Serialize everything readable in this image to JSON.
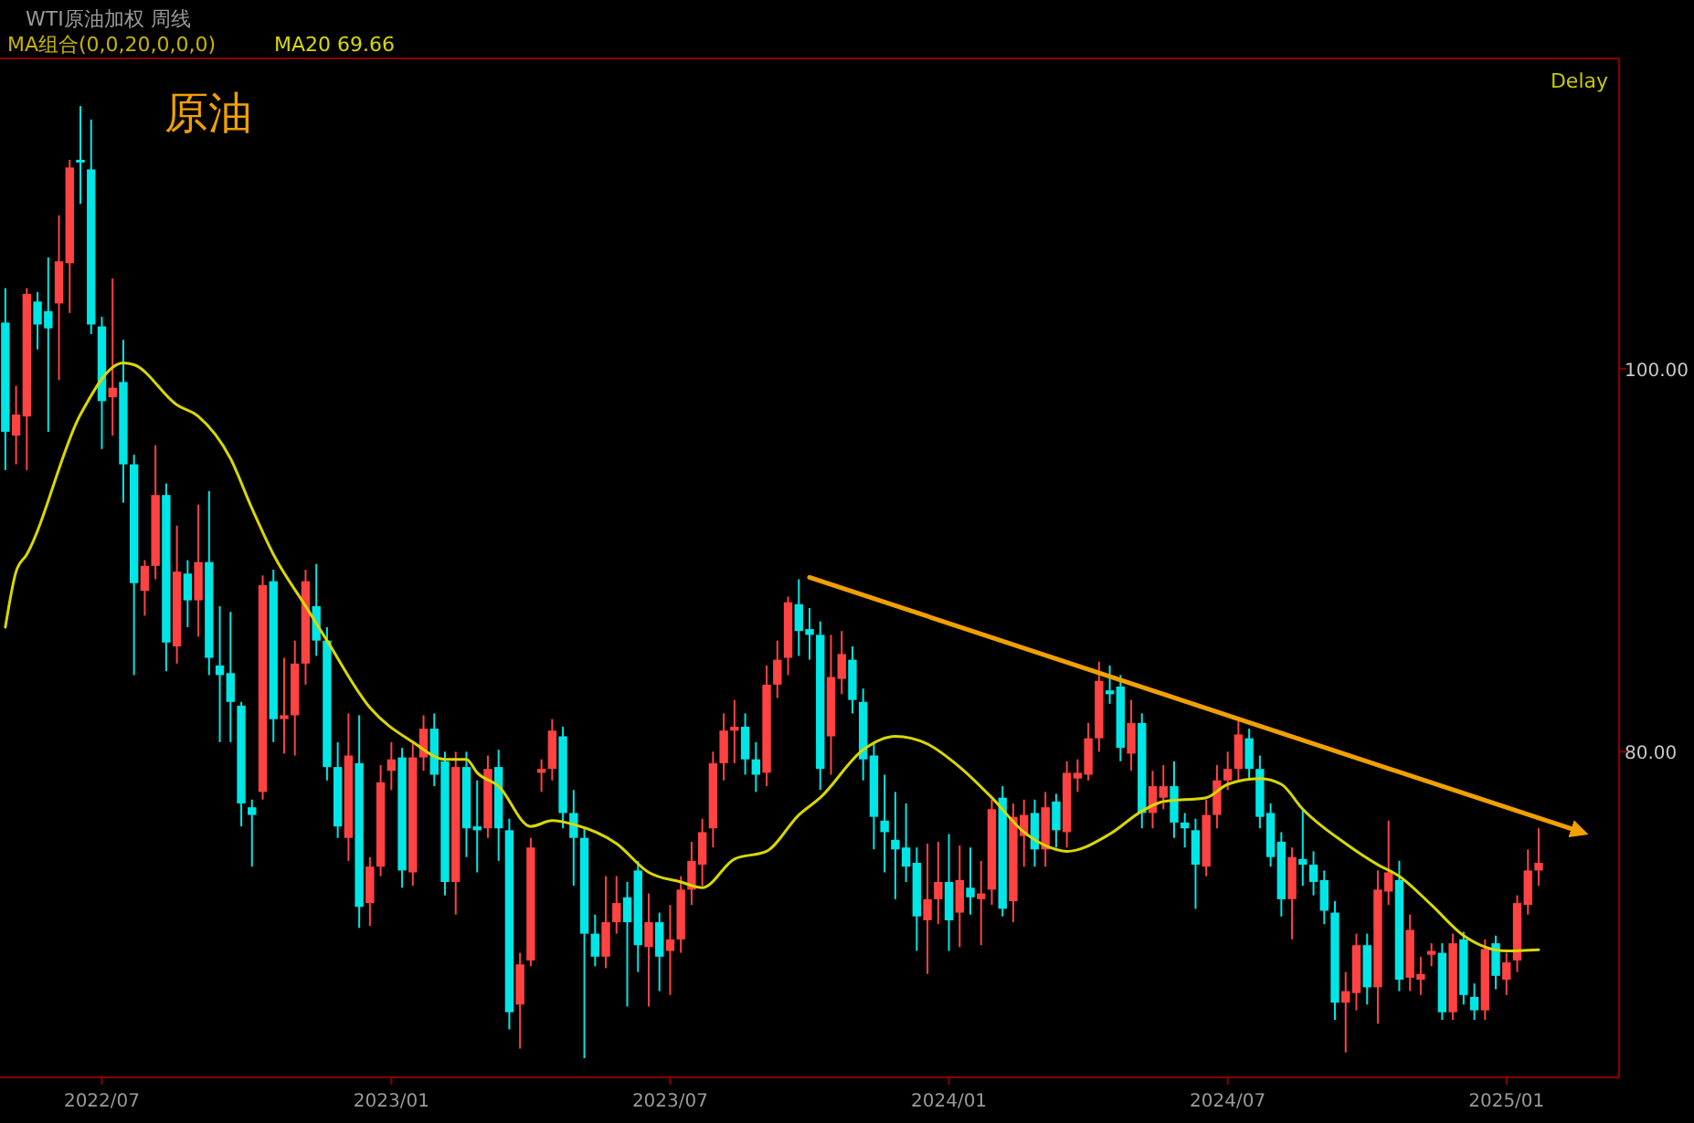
{
  "chart_data": {
    "type": "candlestick",
    "title": "WTI原油加权 周线",
    "subtitle": "MA组合(0,0,20,0,0,0)",
    "categories": [
      null,
      null,
      null,
      null,
      null,
      null,
      null,
      null,
      null,
      "2022/07",
      null,
      null,
      null,
      null,
      null,
      null,
      null,
      null,
      null,
      null,
      null,
      null,
      null,
      null,
      null,
      null,
      null,
      null,
      null,
      null,
      null,
      null,
      null,
      null,
      null,
      null,
      "2023/01",
      null,
      null,
      null,
      null,
      null,
      null,
      null,
      null,
      null,
      null,
      null,
      null,
      null,
      null,
      null,
      null,
      null,
      null,
      null,
      null,
      null,
      null,
      null,
      null,
      null,
      "2023/07",
      null,
      null,
      null,
      null,
      null,
      null,
      null,
      null,
      null,
      null,
      null,
      null,
      null,
      null,
      null,
      null,
      null,
      null,
      null,
      null,
      null,
      null,
      null,
      null,
      null,
      "2024/01",
      null,
      null,
      null,
      null,
      null,
      null,
      null,
      null,
      null,
      null,
      null,
      null,
      null,
      null,
      null,
      null,
      null,
      null,
      null,
      null,
      null,
      null,
      null,
      null,
      null,
      "2024/07",
      null,
      null,
      null,
      null,
      null,
      null,
      null,
      null,
      null,
      null,
      null,
      null,
      null,
      null,
      null,
      null,
      null,
      null,
      null,
      null,
      null,
      null,
      null,
      null,
      null,
      "2025/01",
      null,
      null,
      null,
      null,
      null,
      null,
      null,
      null,
      null,
      null
    ],
    "ohlc": [
      [
        102.4,
        104.2,
        94.7,
        96.7
      ],
      [
        96.5,
        99.1,
        95.0,
        97.6
      ],
      [
        97.5,
        104.2,
        94.7,
        103.9
      ],
      [
        103.5,
        104.0,
        101.0,
        102.3
      ],
      [
        103.0,
        105.8,
        96.7,
        102.1
      ],
      [
        103.4,
        108.0,
        99.4,
        105.6
      ],
      [
        105.5,
        110.9,
        102.9,
        110.5
      ],
      [
        110.9,
        113.7,
        108.6,
        110.8
      ],
      [
        110.4,
        113.0,
        101.8,
        102.3
      ],
      [
        102.2,
        102.7,
        95.8,
        98.3
      ],
      [
        98.5,
        104.7,
        96.5,
        99.0
      ],
      [
        99.3,
        101.5,
        93.0,
        95.0
      ],
      [
        95.0,
        95.5,
        84.0,
        88.8
      ],
      [
        88.4,
        90.0,
        87.1,
        89.7
      ],
      [
        89.7,
        96.0,
        89.0,
        93.4
      ],
      [
        93.4,
        94.0,
        84.2,
        85.7
      ],
      [
        85.5,
        91.8,
        84.6,
        89.4
      ],
      [
        89.3,
        90.0,
        86.5,
        87.9
      ],
      [
        87.9,
        92.9,
        86.0,
        89.9
      ],
      [
        89.9,
        93.6,
        84.0,
        84.9
      ],
      [
        84.5,
        87.6,
        80.5,
        84.0
      ],
      [
        84.1,
        87.3,
        80.5,
        82.6
      ],
      [
        82.4,
        82.6,
        76.1,
        77.3
      ],
      [
        77.1,
        77.5,
        74.0,
        76.7
      ],
      [
        77.9,
        89.2,
        77.5,
        88.7
      ],
      [
        88.9,
        89.5,
        80.5,
        81.7
      ],
      [
        81.7,
        84.9,
        79.9,
        81.9
      ],
      [
        81.9,
        85.8,
        79.8,
        84.6
      ],
      [
        84.6,
        89.5,
        83.5,
        88.9
      ],
      [
        87.6,
        89.8,
        85.0,
        85.8
      ],
      [
        85.8,
        86.5,
        78.5,
        79.2
      ],
      [
        79.2,
        80.5,
        75.5,
        76.1
      ],
      [
        75.5,
        82.0,
        74.3,
        79.8
      ],
      [
        79.4,
        81.9,
        70.8,
        71.9
      ],
      [
        72.1,
        74.5,
        70.9,
        74.0
      ],
      [
        74.0,
        79.3,
        73.5,
        78.4
      ],
      [
        79.0,
        80.5,
        78.0,
        79.6
      ],
      [
        79.7,
        80.2,
        72.9,
        73.8
      ],
      [
        73.7,
        80.5,
        73.0,
        79.7
      ],
      [
        79.7,
        81.9,
        79.0,
        81.2
      ],
      [
        81.2,
        82.0,
        78.2,
        78.8
      ],
      [
        79.5,
        80.0,
        72.5,
        73.2
      ],
      [
        73.2,
        80.0,
        71.5,
        79.2
      ],
      [
        79.2,
        80.0,
        74.5,
        76.0
      ],
      [
        76.1,
        78.5,
        73.7,
        75.9
      ],
      [
        76.0,
        79.8,
        75.5,
        79.1
      ],
      [
        79.2,
        80.1,
        74.3,
        76.0
      ],
      [
        75.9,
        76.5,
        65.5,
        66.4
      ],
      [
        66.8,
        69.5,
        64.5,
        68.9
      ],
      [
        69.1,
        75.5,
        68.8,
        75.0
      ],
      [
        78.9,
        79.6,
        77.9,
        79.1
      ],
      [
        79.1,
        81.7,
        78.5,
        81.1
      ],
      [
        80.8,
        81.3,
        76.0,
        76.8
      ],
      [
        76.8,
        78.0,
        73.0,
        75.5
      ],
      [
        75.5,
        76.0,
        64.0,
        70.5
      ],
      [
        70.5,
        71.5,
        68.8,
        69.3
      ],
      [
        69.3,
        73.5,
        68.7,
        71.1
      ],
      [
        71.1,
        73.5,
        70.5,
        72.1
      ],
      [
        72.4,
        73.2,
        66.7,
        71.1
      ],
      [
        73.8,
        74.3,
        68.5,
        69.9
      ],
      [
        69.8,
        72.6,
        66.7,
        71.1
      ],
      [
        71.1,
        71.6,
        67.5,
        69.3
      ],
      [
        69.6,
        72.0,
        67.3,
        70.2
      ],
      [
        70.2,
        73.5,
        69.5,
        72.8
      ],
      [
        72.8,
        75.3,
        72.0,
        74.3
      ],
      [
        74.1,
        76.5,
        73.0,
        75.8
      ],
      [
        76.0,
        80.0,
        75.0,
        79.4
      ],
      [
        79.4,
        82.0,
        78.5,
        81.1
      ],
      [
        81.1,
        82.7,
        79.4,
        81.3
      ],
      [
        81.3,
        82.0,
        78.8,
        79.6
      ],
      [
        79.6,
        80.5,
        77.9,
        78.8
      ],
      [
        78.9,
        84.5,
        78.2,
        83.5
      ],
      [
        83.5,
        85.8,
        82.8,
        84.8
      ],
      [
        84.9,
        88.1,
        84.0,
        87.8
      ],
      [
        87.7,
        89.0,
        85.0,
        86.3
      ],
      [
        86.4,
        87.5,
        84.8,
        86.1
      ],
      [
        86.1,
        86.8,
        78.0,
        79.1
      ],
      [
        80.8,
        86.1,
        78.8,
        83.9
      ],
      [
        83.8,
        86.3,
        83.0,
        85.1
      ],
      [
        84.8,
        85.5,
        82.0,
        82.7
      ],
      [
        82.6,
        83.3,
        78.5,
        79.6
      ],
      [
        79.8,
        80.5,
        74.9,
        76.6
      ],
      [
        76.4,
        78.8,
        73.7,
        75.8
      ],
      [
        75.4,
        77.9,
        72.3,
        74.9
      ],
      [
        75.0,
        77.3,
        73.2,
        74.0
      ],
      [
        74.2,
        75.0,
        69.6,
        71.4
      ],
      [
        71.2,
        75.2,
        68.4,
        72.3
      ],
      [
        72.3,
        75.3,
        71.0,
        73.2
      ],
      [
        73.2,
        75.7,
        69.6,
        71.2
      ],
      [
        71.6,
        75.1,
        69.8,
        73.3
      ],
      [
        72.9,
        75.0,
        71.5,
        72.4
      ],
      [
        72.3,
        74.3,
        69.9,
        72.6
      ],
      [
        72.8,
        77.5,
        72.0,
        77.0
      ],
      [
        77.6,
        78.2,
        71.4,
        71.8
      ],
      [
        72.2,
        77.3,
        71.1,
        76.6
      ],
      [
        75.6,
        77.5,
        74.0,
        76.7
      ],
      [
        76.8,
        77.5,
        74.0,
        74.9
      ],
      [
        74.9,
        77.9,
        74.0,
        77.1
      ],
      [
        77.4,
        77.8,
        75.0,
        75.9
      ],
      [
        75.8,
        79.5,
        75.0,
        78.9
      ],
      [
        78.6,
        79.6,
        77.9,
        78.9
      ],
      [
        78.8,
        81.5,
        78.5,
        80.7
      ],
      [
        80.7,
        84.7,
        80.0,
        83.7
      ],
      [
        83.2,
        84.5,
        82.5,
        83.0
      ],
      [
        83.4,
        84.0,
        79.5,
        80.2
      ],
      [
        79.9,
        82.7,
        79.0,
        81.5
      ],
      [
        81.5,
        82.0,
        76.0,
        76.8
      ],
      [
        76.8,
        79.0,
        76.0,
        78.2
      ],
      [
        77.6,
        79.3,
        77.0,
        78.2
      ],
      [
        78.2,
        79.5,
        75.5,
        76.3
      ],
      [
        76.3,
        76.8,
        75.0,
        76.0
      ],
      [
        75.9,
        76.5,
        71.8,
        74.1
      ],
      [
        74.0,
        77.5,
        73.5,
        76.7
      ],
      [
        76.7,
        79.3,
        76.0,
        78.5
      ],
      [
        78.5,
        80.0,
        78.0,
        79.1
      ],
      [
        79.1,
        81.6,
        78.5,
        80.9
      ],
      [
        80.7,
        81.2,
        78.5,
        79.1
      ],
      [
        79.1,
        79.8,
        76.0,
        76.6
      ],
      [
        76.8,
        77.3,
        74.0,
        74.5
      ],
      [
        75.3,
        75.8,
        71.4,
        72.3
      ],
      [
        72.3,
        75.0,
        70.2,
        74.5
      ],
      [
        74.4,
        77.0,
        73.0,
        74.1
      ],
      [
        74.1,
        74.8,
        72.5,
        73.2
      ],
      [
        73.3,
        73.8,
        71.0,
        71.7
      ],
      [
        71.6,
        72.2,
        66.0,
        66.9
      ],
      [
        66.9,
        68.5,
        64.3,
        67.5
      ],
      [
        67.4,
        70.5,
        66.5,
        69.9
      ],
      [
        69.9,
        70.5,
        66.8,
        67.7
      ],
      [
        67.7,
        73.8,
        65.8,
        72.8
      ],
      [
        72.7,
        76.4,
        72.0,
        73.7
      ],
      [
        73.3,
        74.3,
        67.5,
        68.1
      ],
      [
        68.2,
        71.5,
        67.5,
        70.7
      ],
      [
        68.1,
        69.3,
        67.3,
        68.4
      ],
      [
        69.4,
        70.0,
        68.8,
        69.6
      ],
      [
        69.5,
        70.0,
        66.0,
        66.4
      ],
      [
        66.4,
        70.5,
        66.0,
        70.0
      ],
      [
        70.2,
        70.6,
        66.8,
        67.3
      ],
      [
        67.2,
        67.9,
        66.0,
        66.5
      ],
      [
        66.5,
        70.2,
        66.0,
        69.7
      ],
      [
        70.0,
        70.4,
        67.6,
        68.3
      ],
      [
        68.1,
        69.5,
        67.3,
        69.0
      ],
      [
        69.1,
        72.5,
        68.5,
        72.1
      ],
      [
        72.0,
        74.9,
        71.5,
        73.8
      ],
      [
        73.8,
        76.0,
        73.0,
        74.2
      ],
      null,
      null,
      null,
      null,
      null,
      null,
      null
    ],
    "series": [
      {
        "name": "MA20 69.66",
        "type": "line",
        "color": "#d8d800",
        "values": [
          86.5,
          89.4,
          90.3,
          null,
          null,
          null,
          null,
          97.6,
          null,
          null,
          null,
          100.3,
          100.2,
          null,
          null,
          null,
          98.1,
          null,
          97.5,
          null,
          null,
          95.3,
          null,
          92.7,
          null,
          90.3,
          null,
          null,
          87.6,
          null,
          85.8,
          null,
          null,
          null,
          82.3,
          null,
          null,
          null,
          80.5,
          null,
          null,
          79.6,
          null,
          79.6,
          78.9,
          null,
          78.2,
          null,
          null,
          76.1,
          null,
          76.4,
          null,
          76.2,
          null,
          null,
          null,
          75.2,
          null,
          null,
          73.7,
          null,
          null,
          73.2,
          null,
          72.9,
          null,
          null,
          74.4,
          null,
          null,
          74.8,
          null,
          null,
          76.7,
          null,
          77.6,
          null,
          null,
          null,
          80.1,
          null,
          null,
          80.8,
          null,
          null,
          80.4,
          null,
          null,
          79.2,
          null,
          null,
          77.6,
          null,
          null,
          75.8,
          null,
          75.1,
          null,
          74.8,
          null,
          null,
          null,
          75.7,
          null,
          null,
          76.9,
          null,
          77.4,
          null,
          null,
          null,
          77.6,
          null,
          78.3,
          null,
          null,
          78.6,
          null,
          78.3,
          null,
          77.0,
          null,
          null,
          null,
          75.2,
          null,
          null,
          74.1,
          null,
          73.5,
          null,
          null,
          72.0,
          null,
          null,
          70.4,
          null,
          null,
          null,
          69.6,
          null,
          null,
          69.66,
          null,
          null,
          null,
          null,
          null,
          null,
          null
        ]
      },
      {
        "type": "line",
        "color": "#f0a000",
        "values": [
          null,
          null,
          null,
          null,
          null,
          null,
          null,
          null,
          null,
          null,
          null,
          null,
          null,
          null,
          null,
          null,
          null,
          null,
          null,
          null,
          null,
          null,
          null,
          null,
          null,
          null,
          null,
          null,
          null,
          null,
          null,
          null,
          null,
          null,
          null,
          null,
          null,
          null,
          null,
          null,
          null,
          null,
          null,
          null,
          null,
          null,
          null,
          null,
          null,
          null,
          null,
          null,
          null,
          null,
          null,
          null,
          null,
          null,
          null,
          null,
          null,
          null,
          null,
          null,
          null,
          null,
          null,
          null,
          null,
          null,
          null,
          null,
          null,
          null,
          null,
          89.1,
          null,
          null,
          null,
          null,
          null,
          null,
          null,
          null,
          null,
          null,
          null,
          null,
          null,
          null,
          null,
          null,
          null,
          null,
          null,
          null,
          null,
          null,
          null,
          null,
          null,
          null,
          null,
          null,
          null,
          null,
          null,
          null,
          null,
          null,
          null,
          null,
          null,
          null,
          null,
          null,
          null,
          null,
          null,
          null,
          null,
          null,
          null,
          null,
          null,
          null,
          null,
          null,
          null,
          null,
          null,
          null,
          null,
          null,
          null,
          null,
          null,
          null,
          null,
          null,
          null,
          null,
          null,
          null,
          null,
          null,
          null,
          75.8,
          null,
          null,
          null
        ]
      }
    ],
    "ylim": [
      63,
      116
    ],
    "yticks": [
      {
        "value": 100,
        "label": "100.00"
      },
      {
        "value": 80,
        "label": "80.00"
      }
    ],
    "legend": "top left",
    "annotations": [
      "原油",
      "Delay"
    ]
  }
}
